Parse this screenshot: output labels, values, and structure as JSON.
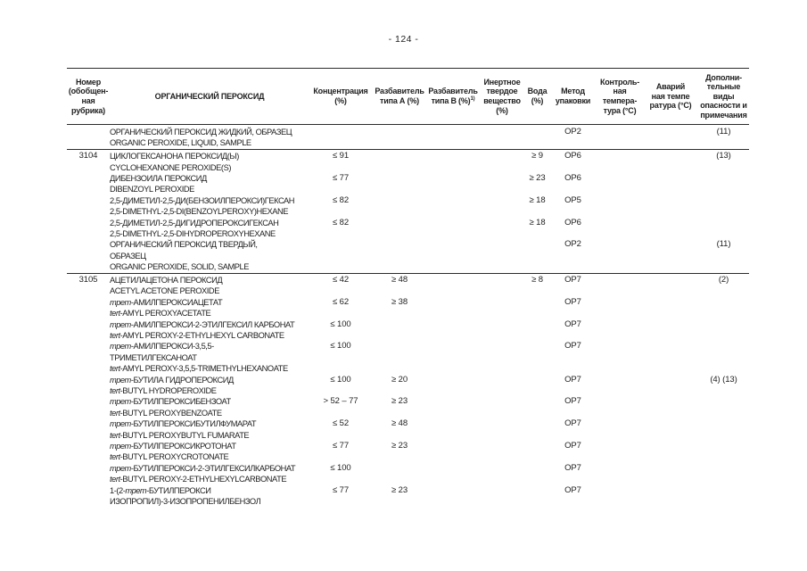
{
  "page": {
    "number_label": "- 124 -"
  },
  "table": {
    "columns": [
      {
        "id": "un_number",
        "lines": [
          "Номер",
          "(обобщен-",
          "ная",
          "рубрика)"
        ]
      },
      {
        "id": "peroxide_name",
        "lines": [
          "ОРГАНИЧЕСКИЙ ПЕРОКСИД"
        ]
      },
      {
        "id": "concentration",
        "lines": [
          "Концентрация",
          "(%)"
        ]
      },
      {
        "id": "diluent_a",
        "lines": [
          "Разбавитель",
          "типа А (%)"
        ]
      },
      {
        "id": "diluent_b",
        "lines": [
          "Разбавитель",
          "типа В (%)"
        ],
        "sup": "1)"
      },
      {
        "id": "inert_solid",
        "lines": [
          "Инертное",
          "твердое",
          "вещество",
          "(%)"
        ]
      },
      {
        "id": "water",
        "lines": [
          "Вода",
          "(%)"
        ]
      },
      {
        "id": "packing_method",
        "lines": [
          "Метод",
          "упаковки"
        ]
      },
      {
        "id": "control_temp",
        "lines": [
          "Контроль-",
          "ная",
          "темпера-",
          "тура (°C)"
        ]
      },
      {
        "id": "emergency_temp",
        "lines": [
          "Аварий",
          "ная темпе",
          "ратура (°C)"
        ]
      },
      {
        "id": "notes",
        "lines": [
          "Дополни-",
          "тельные",
          "виды",
          "опасности и",
          "примечания"
        ]
      }
    ],
    "rows": [
      {
        "group_start": false,
        "number": "",
        "name_lines": [
          [
            "ОРГАНИЧЕСКИЙ ПЕРОКСИД ЖИДКИЙ, ОБРАЗЕЦ"
          ],
          [
            "ORGANIC PEROXIDE, LIQUID, SAMPLE"
          ]
        ],
        "concentration": "",
        "diluent_a": "",
        "diluent_b": "",
        "inert_solid": "",
        "water": "",
        "packing_method": "OP2",
        "control_temp": "",
        "emergency_temp": "",
        "notes": "(11)"
      },
      {
        "group_start": true,
        "number": "3104",
        "name_lines": [
          [
            "ЦИКЛОГЕКСАНОНА ПЕРОКСИД(Ы)"
          ],
          [
            "CYCLOHEXANONE PEROXIDE(S)"
          ]
        ],
        "concentration": "≤ 91",
        "diluent_a": "",
        "diluent_b": "",
        "inert_solid": "",
        "water": "≥ 9",
        "packing_method": "OP6",
        "control_temp": "",
        "emergency_temp": "",
        "notes": "(13)"
      },
      {
        "group_start": false,
        "number": "",
        "name_lines": [
          [
            "ДИБЕНЗОИЛА ПЕРОКСИД"
          ],
          [
            "DIBENZOYL PEROXIDE"
          ]
        ],
        "concentration": "≤ 77",
        "diluent_a": "",
        "diluent_b": "",
        "inert_solid": "",
        "water": "≥ 23",
        "packing_method": "OP6",
        "control_temp": "",
        "emergency_temp": "",
        "notes": ""
      },
      {
        "group_start": false,
        "number": "",
        "name_lines": [
          [
            "2,5-ДИМЕТИЛ-2,5-ДИ(БЕНЗОИЛПЕРОКСИ)ГЕКСАН"
          ],
          [
            "2,5-DIMETHYL-2,5-DI(BENZOYLPEROXY)HEXANE"
          ]
        ],
        "concentration": "≤ 82",
        "diluent_a": "",
        "diluent_b": "",
        "inert_solid": "",
        "water": "≥ 18",
        "packing_method": "OP5",
        "control_temp": "",
        "emergency_temp": "",
        "notes": ""
      },
      {
        "group_start": false,
        "number": "",
        "name_lines": [
          [
            "2,5-ДИМЕТИЛ-2,5-ДИГИДРОПЕРОКСИГЕКСАН"
          ],
          [
            "2,5-DIMETHYL-2,5-DIHYDROPEROXYHEXANE"
          ]
        ],
        "concentration": "≤ 82",
        "diluent_a": "",
        "diluent_b": "",
        "inert_solid": "",
        "water": "≥ 18",
        "packing_method": "OP6",
        "control_temp": "",
        "emergency_temp": "",
        "notes": ""
      },
      {
        "group_start": false,
        "number": "",
        "name_lines": [
          [
            "ОРГАНИЧЕСКИЙ ПЕРОКСИД ТВЕРДЫЙ,"
          ],
          [
            "ОБРАЗЕЦ"
          ],
          [
            "ORGANIC PEROXIDE, SOLID, SAMPLE"
          ]
        ],
        "concentration": "",
        "diluent_a": "",
        "diluent_b": "",
        "inert_solid": "",
        "water": "",
        "packing_method": "OP2",
        "control_temp": "",
        "emergency_temp": "",
        "notes": "(11)"
      },
      {
        "group_start": true,
        "number": "3105",
        "name_lines": [
          [
            "АЦЕТИЛАЦЕТОНА ПЕРОКСИД"
          ],
          [
            "ACETYL ACETONE PEROXIDE"
          ]
        ],
        "concentration": "≤ 42",
        "diluent_a": "≥ 48",
        "diluent_b": "",
        "inert_solid": "",
        "water": "≥ 8",
        "packing_method": "OP7",
        "control_temp": "",
        "emergency_temp": "",
        "notes": "(2)"
      },
      {
        "group_start": false,
        "number": "",
        "name_lines": [
          [
            {
              "t": "трет",
              "i": true
            },
            "-АМИЛПЕРОКСИАЦЕТАТ"
          ],
          [
            {
              "t": "tert",
              "i": true
            },
            "-AMYL PEROXYACETATE"
          ]
        ],
        "concentration": "≤ 62",
        "diluent_a": "≥ 38",
        "diluent_b": "",
        "inert_solid": "",
        "water": "",
        "packing_method": "OP7",
        "control_temp": "",
        "emergency_temp": "",
        "notes": ""
      },
      {
        "group_start": false,
        "number": "",
        "name_lines": [
          [
            {
              "t": "трет",
              "i": true
            },
            "-АМИЛПЕРОКСИ-2-ЭТИЛГЕКСИЛ КАРБОНАТ"
          ],
          [
            {
              "t": "tert",
              "i": true
            },
            "-AMYL PEROXY-2-ETHYLHEXYL CARBONATE"
          ]
        ],
        "concentration": "≤ 100",
        "diluent_a": "",
        "diluent_b": "",
        "inert_solid": "",
        "water": "",
        "packing_method": "OP7",
        "control_temp": "",
        "emergency_temp": "",
        "notes": ""
      },
      {
        "group_start": false,
        "number": "",
        "name_lines": [
          [
            {
              "t": "трет",
              "i": true
            },
            "-АМИЛПЕРОКСИ-3,5,5-"
          ],
          [
            "ТРИМЕТИЛГЕКСАНОАТ"
          ],
          [
            {
              "t": "tert",
              "i": true
            },
            "-AMYL PEROXY-3,5,5-TRIMETHYLHEXANOATE"
          ]
        ],
        "concentration": "≤ 100",
        "diluent_a": "",
        "diluent_b": "",
        "inert_solid": "",
        "water": "",
        "packing_method": "OP7",
        "control_temp": "",
        "emergency_temp": "",
        "notes": ""
      },
      {
        "group_start": false,
        "number": "",
        "name_lines": [
          [
            {
              "t": "трет",
              "i": true
            },
            "-БУТИЛА ГИДРОПЕРОКСИД"
          ],
          [
            {
              "t": "tert",
              "i": true
            },
            "-BUTYL HYDROPEROXIDE"
          ]
        ],
        "concentration": "≤ 100",
        "diluent_a": "≥ 20",
        "diluent_b": "",
        "inert_solid": "",
        "water": "",
        "packing_method": "OP7",
        "control_temp": "",
        "emergency_temp": "",
        "notes": "(4) (13)"
      },
      {
        "group_start": false,
        "number": "",
        "name_lines": [
          [
            {
              "t": "трет",
              "i": true
            },
            "-БУТИЛПЕРОКСИБЕНЗОАТ"
          ],
          [
            {
              "t": "tert",
              "i": true
            },
            "-BUTYL PEROXYBENZOATE"
          ]
        ],
        "concentration": "> 52 – 77",
        "diluent_a": "≥ 23",
        "diluent_b": "",
        "inert_solid": "",
        "water": "",
        "packing_method": "OP7",
        "control_temp": "",
        "emergency_temp": "",
        "notes": ""
      },
      {
        "group_start": false,
        "number": "",
        "name_lines": [
          [
            {
              "t": "трет",
              "i": true
            },
            "-БУТИЛПЕРОКСИБУТИЛФУМАРАТ"
          ],
          [
            {
              "t": "tert",
              "i": true
            },
            "-BUTYL PEROXYBUTYL FUMARATE"
          ]
        ],
        "concentration": "≤ 52",
        "diluent_a": "≥ 48",
        "diluent_b": "",
        "inert_solid": "",
        "water": "",
        "packing_method": "OP7",
        "control_temp": "",
        "emergency_temp": "",
        "notes": ""
      },
      {
        "group_start": false,
        "number": "",
        "name_lines": [
          [
            {
              "t": "трет",
              "i": true
            },
            "-БУТИЛПЕРОКСИКРОТОНАТ"
          ],
          [
            {
              "t": "tert",
              "i": true
            },
            "-BUTYL PEROXYCROTONATE"
          ]
        ],
        "concentration": "≤ 77",
        "diluent_a": "≥ 23",
        "diluent_b": "",
        "inert_solid": "",
        "water": "",
        "packing_method": "OP7",
        "control_temp": "",
        "emergency_temp": "",
        "notes": ""
      },
      {
        "group_start": false,
        "number": "",
        "name_lines": [
          [
            {
              "t": "трет",
              "i": true
            },
            "-БУТИЛПЕРОКСИ-2-ЭТИЛГЕКСИЛКАРБОНАТ"
          ],
          [
            {
              "t": "tert",
              "i": true
            },
            "-BUTYL PEROXY-2-ETHYLHEXYLCARBONATE"
          ]
        ],
        "concentration": "≤ 100",
        "diluent_a": "",
        "diluent_b": "",
        "inert_solid": "",
        "water": "",
        "packing_method": "OP7",
        "control_temp": "",
        "emergency_temp": "",
        "notes": ""
      },
      {
        "group_start": false,
        "number": "",
        "name_lines": [
          [
            "1-(2-",
            {
              "t": "трет",
              "i": true
            },
            "-БУТИЛПЕРОКСИ"
          ],
          [
            "ИЗОПРОПИЛ)-3-ИЗОПРОПЕНИЛБЕНЗОЛ"
          ]
        ],
        "concentration": "≤ 77",
        "diluent_a": "≥ 23",
        "diluent_b": "",
        "inert_solid": "",
        "water": "",
        "packing_method": "OP7",
        "control_temp": "",
        "emergency_temp": "",
        "notes": ""
      }
    ]
  }
}
